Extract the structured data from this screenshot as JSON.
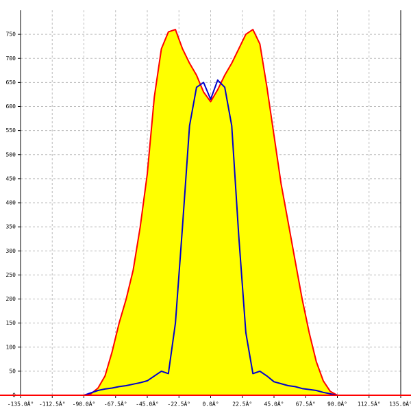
{
  "chart_data": {
    "type": "area",
    "x": [
      -90,
      -85,
      -80,
      -75,
      -70,
      -65,
      -60,
      -55,
      -50,
      -45,
      -40,
      -35,
      -30,
      -25,
      -20,
      -15,
      -10,
      -5,
      0,
      5,
      10,
      15,
      20,
      25,
      30,
      35,
      40,
      45,
      50,
      55,
      60,
      65,
      70,
      75,
      80,
      85,
      90
    ],
    "series": [
      {
        "color": "#ff0000",
        "fill": "#ffff00",
        "values": [
          0,
          3,
          15,
          40,
          90,
          150,
          200,
          260,
          350,
          460,
          620,
          720,
          755,
          760,
          720,
          690,
          665,
          630,
          610,
          635,
          665,
          690,
          720,
          750,
          760,
          730,
          640,
          540,
          440,
          360,
          280,
          200,
          130,
          70,
          30,
          8,
          0
        ]
      },
      {
        "color": "#0000cc",
        "fill": null,
        "values": [
          0,
          5,
          10,
          13,
          15,
          18,
          20,
          23,
          26,
          30,
          40,
          50,
          45,
          150,
          350,
          560,
          640,
          650,
          615,
          655,
          640,
          560,
          330,
          130,
          45,
          50,
          40,
          28,
          24,
          20,
          18,
          14,
          12,
          10,
          6,
          3,
          0
        ]
      }
    ],
    "xlim": [
      -135,
      135
    ],
    "xticks": [
      {
        "value": -135,
        "label": "-135.0Â°"
      },
      {
        "value": -112.5,
        "label": "-112.5Â°"
      },
      {
        "value": -90,
        "label": "-90.0Â°"
      },
      {
        "value": -67.5,
        "label": "-67.5Â°"
      },
      {
        "value": -45,
        "label": "-45.0Â°"
      },
      {
        "value": -22.5,
        "label": "-22.5Â°"
      },
      {
        "value": 0,
        "label": "0.0Â°"
      },
      {
        "value": 22.5,
        "label": "22.5Â°"
      },
      {
        "value": 45,
        "label": "45.0Â°"
      },
      {
        "value": 67.5,
        "label": "67.5Â°"
      },
      {
        "value": 90,
        "label": "90.0Â°"
      },
      {
        "value": 112.5,
        "label": "112.5Â°"
      },
      {
        "value": 135,
        "label": "135.0Â°"
      }
    ],
    "ylim": [
      0,
      800
    ],
    "yticks": [
      0,
      50,
      100,
      150,
      200,
      250,
      300,
      350,
      400,
      450,
      500,
      550,
      600,
      650,
      700,
      750
    ],
    "grid": true
  }
}
